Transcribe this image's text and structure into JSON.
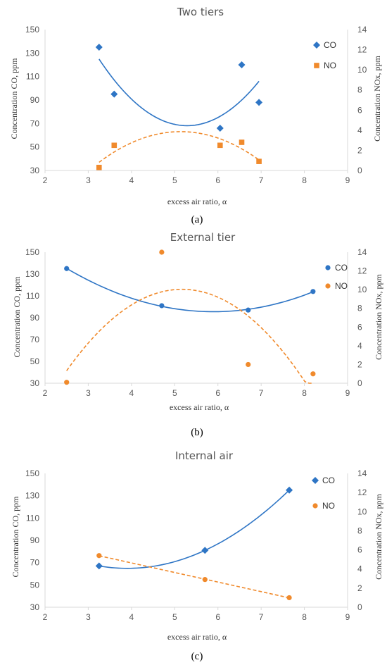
{
  "colors": {
    "co": "#2e75c5",
    "no": "#f08a2c",
    "axis": "#d9d9d9",
    "frame": "#cfcfcf"
  },
  "chart_data": [
    {
      "type": "scatter",
      "title": "Two tiers",
      "caption_letter": "a",
      "xlabel": "excess air ratio, α",
      "ylabel": "Concentration CO, ppm",
      "y2label": "Concentration NOx, ppm",
      "xlim": [
        2,
        9
      ],
      "xticks": [
        2,
        3,
        4,
        5,
        6,
        7,
        8,
        9
      ],
      "ylim": [
        30,
        150
      ],
      "yticks": [
        30,
        50,
        70,
        90,
        110,
        130,
        150
      ],
      "y2lim": [
        0,
        14
      ],
      "y2ticks": [
        0,
        2,
        4,
        6,
        8,
        10,
        12,
        14
      ],
      "grid": false,
      "legend_position": "right",
      "series": [
        {
          "name": "CO",
          "axis": "left",
          "marker": "diamond",
          "trend": "poly2",
          "trend_style": "solid",
          "x": [
            3.25,
            3.6,
            6.05,
            6.55,
            6.95
          ],
          "y": [
            135,
            95,
            66,
            120,
            88
          ]
        },
        {
          "name": "NO",
          "axis": "right",
          "marker": "square",
          "trend": "poly2",
          "trend_style": "dashed",
          "x": [
            3.25,
            3.6,
            6.05,
            6.55,
            6.95
          ],
          "y": [
            0.3,
            2.5,
            2.5,
            2.8,
            0.9
          ]
        }
      ]
    },
    {
      "type": "scatter",
      "title": "External tier",
      "caption_letter": "b",
      "xlabel": "excess air ratio, α",
      "ylabel": "Concentration CO, ppm",
      "y2label": "Concentration NOx, ppm",
      "xlim": [
        2,
        9
      ],
      "xticks": [
        2,
        3,
        4,
        5,
        6,
        7,
        8,
        9
      ],
      "ylim": [
        30,
        150
      ],
      "yticks": [
        30,
        50,
        70,
        90,
        110,
        130,
        150
      ],
      "y2lim": [
        0,
        14
      ],
      "y2ticks": [
        0,
        2,
        4,
        6,
        8,
        10,
        12,
        14
      ],
      "grid": false,
      "legend_position": "right",
      "series": [
        {
          "name": "CO",
          "axis": "left",
          "marker": "circle",
          "trend": "poly2",
          "trend_style": "solid",
          "x": [
            2.5,
            4.7,
            6.7,
            8.2
          ],
          "y": [
            135,
            101,
            97,
            114
          ]
        },
        {
          "name": "NO",
          "axis": "right",
          "marker": "circle",
          "trend": "poly2",
          "trend_style": "dashed",
          "x": [
            2.5,
            4.7,
            6.7,
            8.2
          ],
          "y": [
            0.1,
            14.0,
            2.0,
            1.0
          ]
        }
      ]
    },
    {
      "type": "scatter",
      "title": "Internal air",
      "caption_letter": "c",
      "xlabel": "excess air ratio, α",
      "ylabel": "Concentration CO, ppm",
      "y2label": "Concentration NOx, ppm",
      "xlim": [
        2,
        9
      ],
      "xticks": [
        2,
        3,
        4,
        5,
        6,
        7,
        8,
        9
      ],
      "ylim": [
        30,
        150
      ],
      "yticks": [
        30,
        50,
        70,
        90,
        110,
        130,
        150
      ],
      "y2lim": [
        0,
        14
      ],
      "y2ticks": [
        0,
        2,
        4,
        6,
        8,
        10,
        12,
        14
      ],
      "grid": false,
      "legend_position": "right",
      "series": [
        {
          "name": "CO",
          "axis": "left",
          "marker": "diamond",
          "trend": "poly2",
          "trend_style": "solid",
          "x": [
            3.25,
            5.7,
            7.65
          ],
          "y": [
            67,
            81,
            135
          ]
        },
        {
          "name": "NO",
          "axis": "right",
          "marker": "circle",
          "trend": "linear",
          "trend_style": "dashed",
          "x": [
            3.25,
            5.7,
            7.65
          ],
          "y": [
            5.4,
            2.9,
            1.0
          ]
        }
      ]
    }
  ]
}
